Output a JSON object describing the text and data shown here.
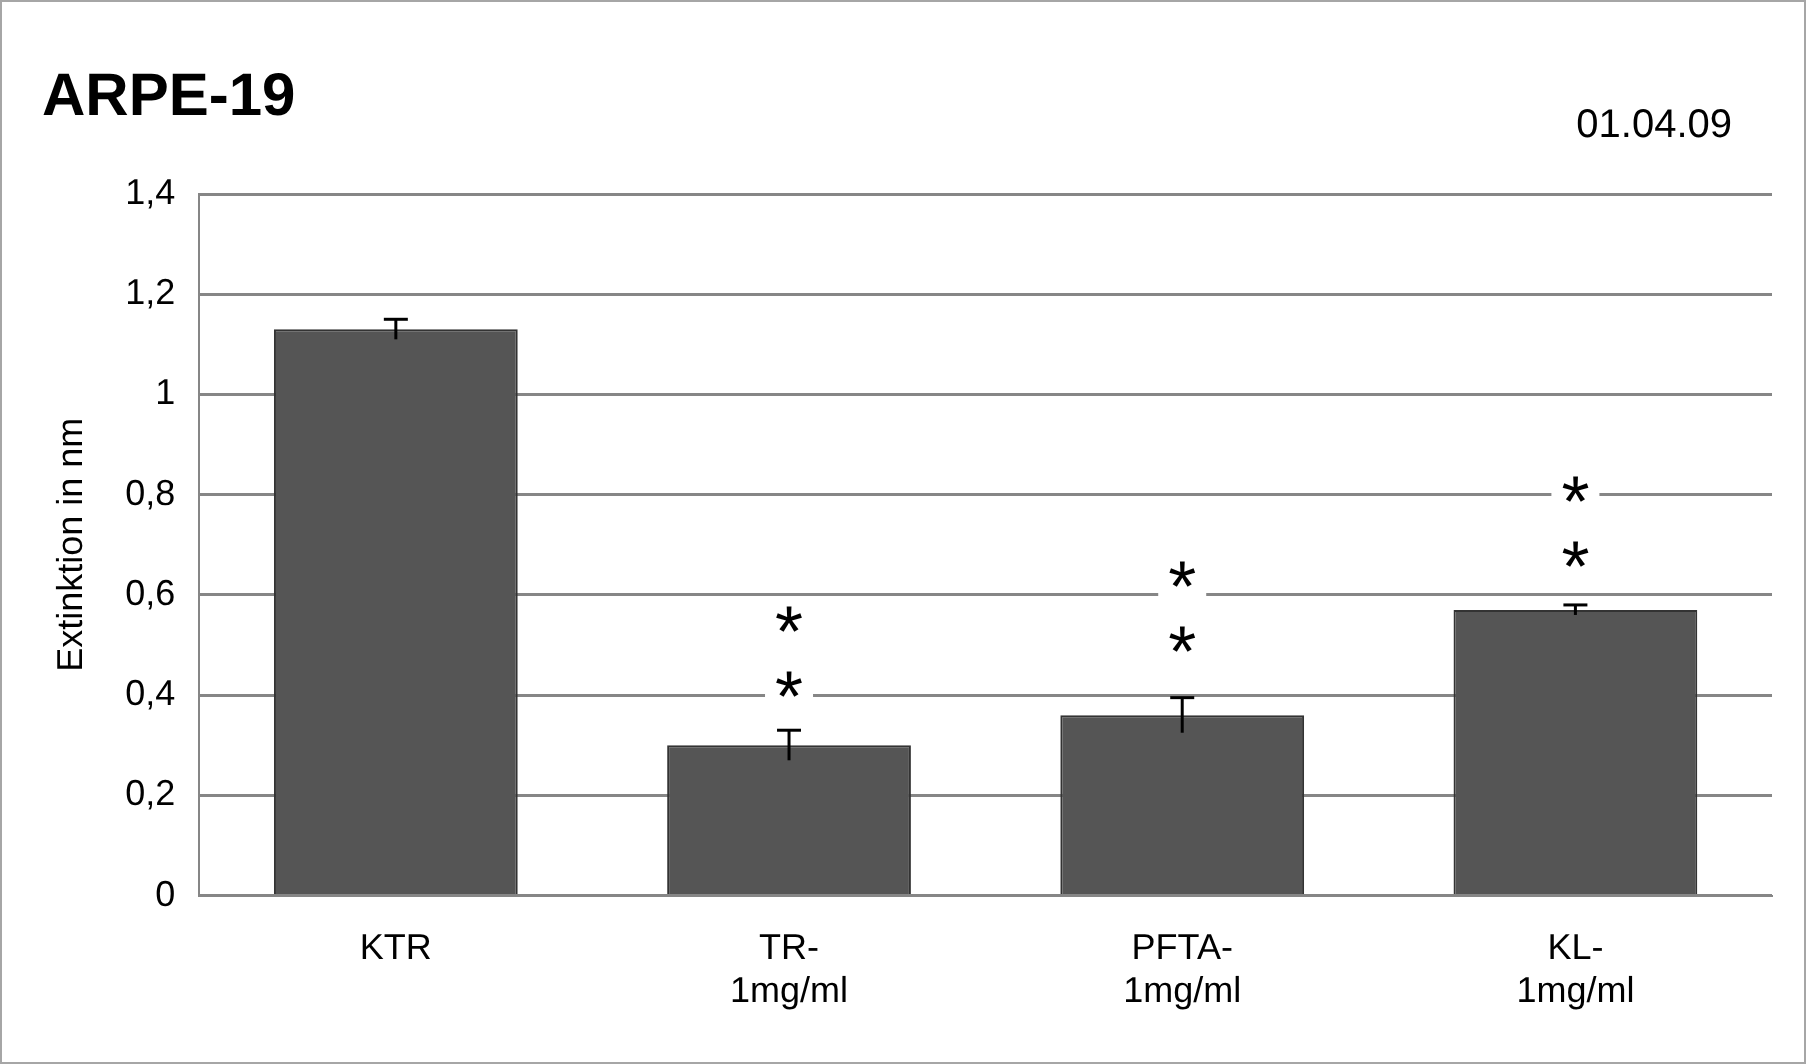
{
  "chart_data": {
    "type": "bar",
    "title": "ARPE-19",
    "ylabel": "Extinktion in nm",
    "categories": [
      "KTR",
      "TR-1mg/ml",
      "PFTA-1mg/ml",
      "KL-1mg/ml"
    ],
    "values": [
      1.13,
      0.3,
      0.36,
      0.57
    ],
    "errors": [
      0.02,
      0.03,
      0.035,
      0.01
    ],
    "color": "#555555",
    "ylim": [
      0,
      1.4
    ],
    "yticks": [
      0,
      {
        "value": 0.2,
        "label": "0,2"
      },
      {
        "value": 0.4,
        "label": "0,4"
      },
      {
        "value": 0.6,
        "label": "0,6"
      },
      {
        "value": 0.8,
        "label": "0,8"
      },
      1,
      {
        "value": 1.2,
        "label": "1,2"
      },
      {
        "value": 1.4,
        "label": "1,4"
      }
    ],
    "grid": "y",
    "legend": false,
    "annotations": [
      "01.04.09",
      {
        "text": "*",
        "x": "TR-1mg/ml",
        "y": 0.55
      },
      {
        "text": "*",
        "x": "TR-1mg/ml",
        "y": 0.42
      },
      {
        "text": "*",
        "x": "PFTA-1mg/ml",
        "y": 0.64
      },
      {
        "text": "*",
        "x": "PFTA-1mg/ml",
        "y": 0.51
      },
      {
        "text": "*",
        "x": "KL-1mg/ml",
        "y": 0.81
      },
      {
        "text": "*",
        "x": "KL-1mg/ml",
        "y": 0.68
      }
    ]
  }
}
